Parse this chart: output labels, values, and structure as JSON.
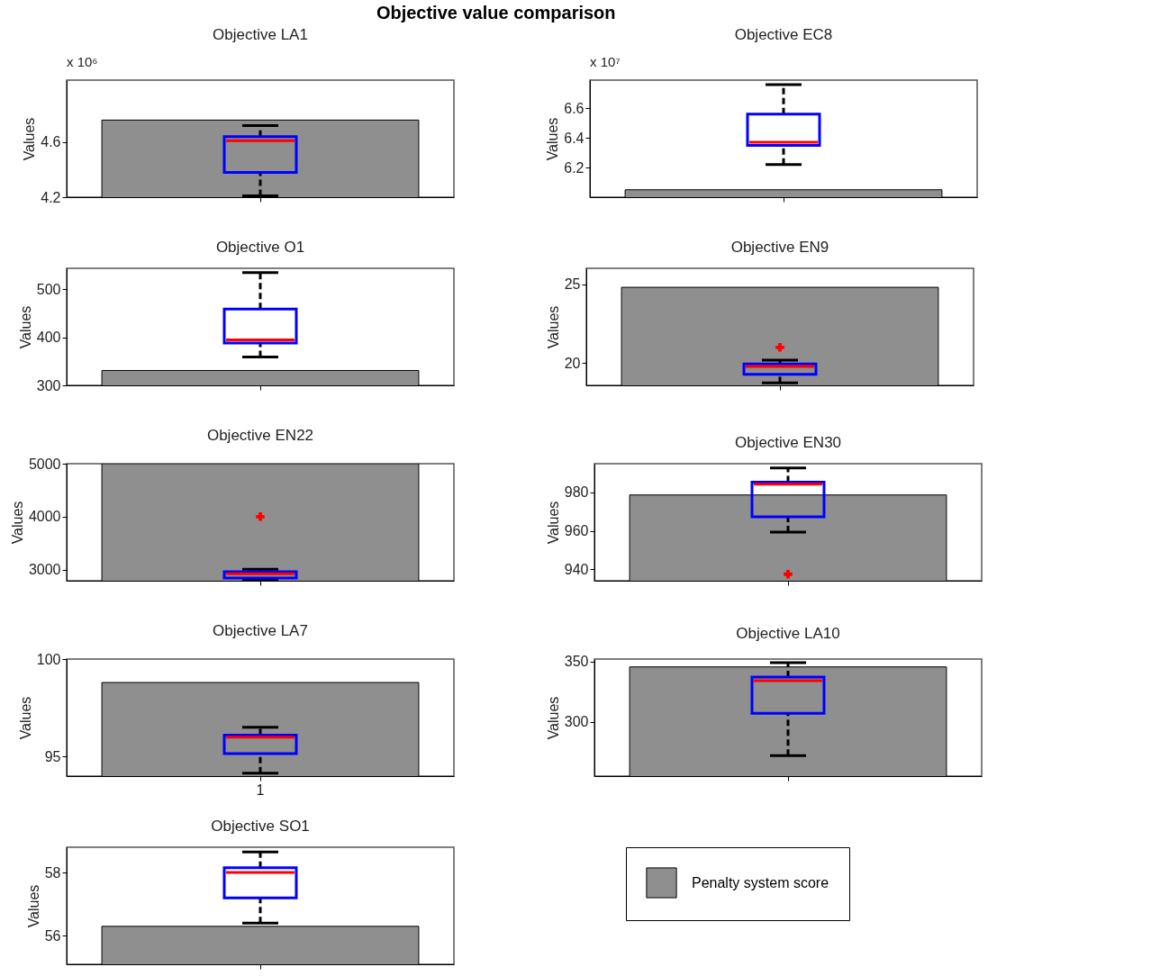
{
  "chart_data": [
    {
      "type": "other",
      "title": "Objective value comparison"
    },
    {
      "type": "box",
      "title": "Objective LA1",
      "ylabel": "Values",
      "annotations": [
        "x 10⁶"
      ],
      "categories": [
        null
      ],
      "ylim": [
        4.2,
        5.05
      ],
      "yticks": [
        4.2,
        4.6
      ],
      "grid": false,
      "series": [
        {
          "type": "bar",
          "color": "#8f8f8f",
          "values": [
            4.76
          ]
        },
        {
          "type": "box",
          "color": "#0000ff",
          "boxes": [
            {
              "low": 4.21,
              "q1": 4.38,
              "median": 4.61,
              "q3": 4.64,
              "high": 4.72
            }
          ]
        }
      ]
    },
    {
      "type": "box",
      "title": "Objective EC8",
      "ylabel": "Values",
      "annotations": [
        "x 10⁷"
      ],
      "categories": [
        null
      ],
      "ylim": [
        6.0,
        6.79
      ],
      "yticks": [
        6.2,
        6.4,
        6.6
      ],
      "grid": false,
      "series": [
        {
          "type": "bar",
          "color": "#8f8f8f",
          "values": [
            6.05
          ]
        },
        {
          "type": "box",
          "color": "#0000ff",
          "boxes": [
            {
              "low": 6.22,
              "q1": 6.35,
              "median": 6.37,
              "q3": 6.56,
              "high": 6.76
            }
          ]
        }
      ]
    },
    {
      "type": "box",
      "title": "Objective O1",
      "ylabel": "Values",
      "categories": [
        null
      ],
      "ylim": [
        300,
        544
      ],
      "yticks": [
        300,
        400,
        500
      ],
      "grid": false,
      "series": [
        {
          "type": "bar",
          "color": "#8f8f8f",
          "values": [
            331
          ]
        },
        {
          "type": "box",
          "color": "#0000ff",
          "boxes": [
            {
              "low": 359,
              "q1": 388,
              "median": 395,
              "q3": 459,
              "high": 535
            }
          ]
        }
      ]
    },
    {
      "type": "box",
      "title": "Objective EN9",
      "ylabel": "Values",
      "categories": [
        null
      ],
      "ylim": [
        18.6,
        26
      ],
      "yticks": [
        20,
        25
      ],
      "grid": false,
      "series": [
        {
          "type": "bar",
          "color": "#8f8f8f",
          "values": [
            24.8
          ]
        },
        {
          "type": "box",
          "color": "#0000ff",
          "boxes": [
            {
              "low": 18.75,
              "q1": 19.3,
              "median": 19.8,
              "q3": 19.95,
              "high": 20.2,
              "outliers": [
                21
              ]
            }
          ]
        }
      ]
    },
    {
      "type": "box",
      "title": "Objective EN22",
      "ylabel": "Values",
      "categories": [
        null
      ],
      "ylim": [
        2790,
        5000
      ],
      "yticks": [
        3000,
        4000,
        5000
      ],
      "grid": false,
      "series": [
        {
          "type": "bar",
          "color": "#8f8f8f",
          "values": [
            5000
          ]
        },
        {
          "type": "box",
          "color": "#0000ff",
          "boxes": [
            {
              "low": 2800,
              "q1": 2840,
              "median": 2920,
              "q3": 2960,
              "high": 3005,
              "outliers": [
                4000
              ]
            }
          ]
        }
      ]
    },
    {
      "type": "box",
      "title": "Objective EN30",
      "ylabel": "Values",
      "categories": [
        null
      ],
      "ylim": [
        934,
        995
      ],
      "yticks": [
        940,
        960,
        980
      ],
      "grid": false,
      "series": [
        {
          "type": "bar",
          "color": "#8f8f8f",
          "values": [
            978.7
          ]
        },
        {
          "type": "box",
          "color": "#0000ff",
          "boxes": [
            {
              "low": 959.3,
              "q1": 967.3,
              "median": 984.3,
              "q3": 985.4,
              "high": 992.8,
              "outliers": [
                937.4
              ]
            }
          ]
        }
      ]
    },
    {
      "type": "box",
      "title": "Objective LA7",
      "ylabel": "Values",
      "categories": [
        "1"
      ],
      "ylim": [
        94,
        100
      ],
      "yticks": [
        95,
        100
      ],
      "grid": false,
      "series": [
        {
          "type": "bar",
          "color": "#8f8f8f",
          "values": [
            98.8
          ]
        },
        {
          "type": "box",
          "color": "#0000ff",
          "boxes": [
            {
              "low": 94.15,
              "q1": 95.15,
              "median": 96.0,
              "q3": 96.1,
              "high": 96.5
            }
          ]
        }
      ]
    },
    {
      "type": "box",
      "title": "Objective LA10",
      "ylabel": "Values",
      "categories": [
        null
      ],
      "ylim": [
        255,
        352
      ],
      "yticks": [
        300,
        350
      ],
      "grid": false,
      "series": [
        {
          "type": "bar",
          "color": "#8f8f8f",
          "values": [
            345.5
          ]
        },
        {
          "type": "box",
          "color": "#0000ff",
          "boxes": [
            {
              "low": 272,
              "q1": 307,
              "median": 334,
              "q3": 337,
              "high": 349
            }
          ]
        }
      ]
    },
    {
      "type": "box",
      "title": "Objective SO1",
      "ylabel": "Values",
      "categories": [
        null
      ],
      "ylim": [
        55.1,
        58.8
      ],
      "yticks": [
        56,
        58
      ],
      "grid": false,
      "legend": "right",
      "series": [
        {
          "type": "bar",
          "name": "Penalty system score",
          "color": "#8f8f8f",
          "values": [
            56.3
          ]
        },
        {
          "type": "box",
          "color": "#0000ff",
          "boxes": [
            {
              "low": 56.4,
              "q1": 57.2,
              "median": 58.0,
              "q3": 58.15,
              "high": 58.65
            }
          ]
        }
      ]
    }
  ]
}
